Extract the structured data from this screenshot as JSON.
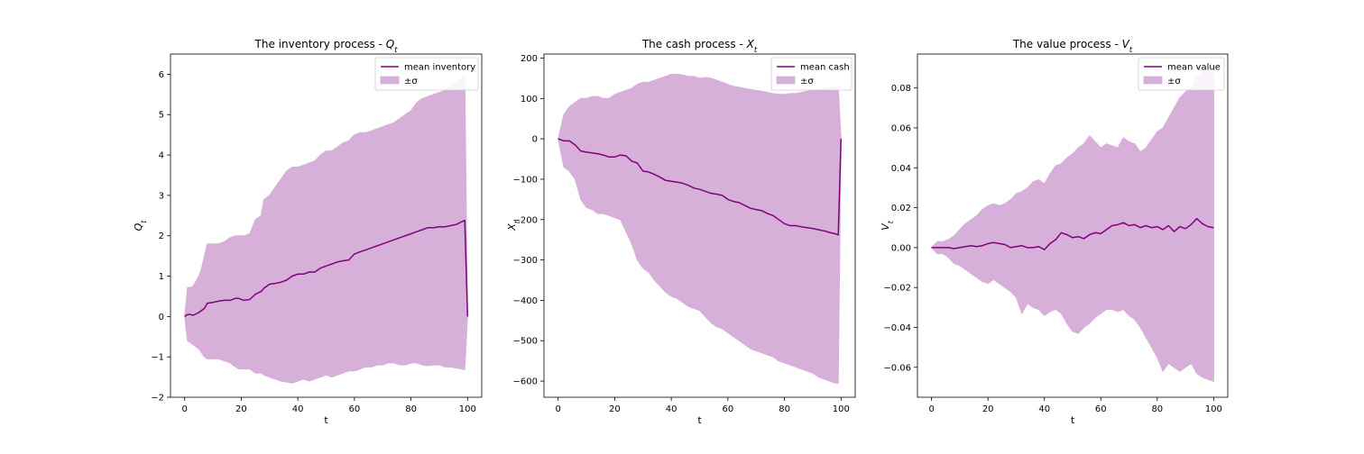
{
  "figure": {
    "background": "#ffffff",
    "line_color": "#800080",
    "band_color": "#d6b0d9"
  },
  "chart_data": [
    {
      "type": "line",
      "title": "The inventory process - ",
      "title_math": "Q",
      "title_sub": "t",
      "xlabel": "t",
      "ylabel": "Q",
      "ylabel_sub": "t",
      "xlim": [
        -5,
        105
      ],
      "ylim": [
        -2.0,
        6.5
      ],
      "xticks": [
        0,
        20,
        40,
        60,
        80,
        100
      ],
      "yticks": [
        -2,
        -1,
        0,
        1,
        2,
        3,
        4,
        5,
        6
      ],
      "legend": {
        "placement": "top-right",
        "entries": [
          "mean inventory",
          "±σ"
        ]
      },
      "series": [
        {
          "name": "mean inventory",
          "kind": "line",
          "x": [
            0,
            1,
            2,
            3,
            5,
            6,
            7,
            8,
            10,
            12,
            14,
            16,
            18,
            19,
            21,
            23,
            25,
            27,
            28,
            30,
            32,
            34,
            36,
            38,
            40,
            42,
            44,
            46,
            48,
            50,
            52,
            54,
            56,
            58,
            60,
            62,
            64,
            66,
            68,
            70,
            72,
            74,
            76,
            78,
            80,
            82,
            84,
            86,
            88,
            90,
            92,
            94,
            96,
            98,
            99,
            100
          ],
          "y": [
            0,
            0.05,
            0.05,
            0.03,
            0.1,
            0.15,
            0.2,
            0.33,
            0.35,
            0.38,
            0.4,
            0.4,
            0.45,
            0.45,
            0.4,
            0.42,
            0.55,
            0.62,
            0.7,
            0.8,
            0.82,
            0.85,
            0.9,
            1.0,
            1.05,
            1.05,
            1.1,
            1.1,
            1.2,
            1.25,
            1.3,
            1.35,
            1.38,
            1.4,
            1.55,
            1.6,
            1.65,
            1.7,
            1.75,
            1.8,
            1.85,
            1.9,
            1.95,
            2.0,
            2.05,
            2.1,
            2.15,
            2.2,
            2.2,
            2.22,
            2.22,
            2.25,
            2.28,
            2.35,
            2.38,
            0.0
          ]
        },
        {
          "name": "±σ",
          "kind": "band",
          "x": [
            0,
            1,
            2,
            3,
            5,
            6,
            7,
            8,
            10,
            12,
            14,
            16,
            18,
            19,
            21,
            23,
            25,
            27,
            28,
            30,
            32,
            34,
            36,
            38,
            40,
            42,
            44,
            46,
            48,
            50,
            52,
            54,
            56,
            58,
            60,
            62,
            64,
            66,
            68,
            70,
            72,
            74,
            76,
            78,
            80,
            82,
            84,
            86,
            88,
            90,
            92,
            94,
            96,
            98,
            99,
            100
          ],
          "upper": [
            0,
            0.72,
            0.72,
            0.75,
            1.0,
            1.2,
            1.5,
            1.8,
            1.8,
            1.8,
            1.85,
            1.95,
            2.0,
            2.0,
            2.0,
            2.05,
            2.4,
            2.5,
            2.9,
            3.0,
            3.2,
            3.4,
            3.6,
            3.7,
            3.7,
            3.75,
            3.8,
            3.85,
            4.0,
            4.1,
            4.1,
            4.2,
            4.3,
            4.35,
            4.5,
            4.55,
            4.55,
            4.6,
            4.65,
            4.7,
            4.75,
            4.8,
            4.9,
            5.0,
            5.1,
            5.3,
            5.4,
            5.45,
            5.5,
            5.55,
            5.6,
            5.7,
            5.8,
            5.9,
            6.0,
            0.0
          ],
          "lower": [
            0,
            -0.6,
            -0.65,
            -0.7,
            -0.8,
            -0.9,
            -1.0,
            -1.05,
            -1.05,
            -1.05,
            -1.1,
            -1.15,
            -1.25,
            -1.3,
            -1.3,
            -1.3,
            -1.4,
            -1.4,
            -1.45,
            -1.5,
            -1.55,
            -1.6,
            -1.62,
            -1.65,
            -1.6,
            -1.55,
            -1.6,
            -1.55,
            -1.5,
            -1.45,
            -1.5,
            -1.45,
            -1.4,
            -1.35,
            -1.35,
            -1.3,
            -1.25,
            -1.25,
            -1.2,
            -1.2,
            -1.15,
            -1.15,
            -1.2,
            -1.2,
            -1.15,
            -1.15,
            -1.2,
            -1.22,
            -1.2,
            -1.2,
            -1.25,
            -1.25,
            -1.28,
            -1.3,
            -1.32,
            0.0
          ]
        }
      ]
    },
    {
      "type": "line",
      "title": "The cash process - ",
      "title_math": "X",
      "title_sub": "t",
      "xlabel": "t",
      "ylabel": "X",
      "ylabel_sub": "t",
      "xlim": [
        -5,
        105
      ],
      "ylim": [
        -640,
        210
      ],
      "xticks": [
        0,
        20,
        40,
        60,
        80,
        100
      ],
      "yticks": [
        -600,
        -500,
        -400,
        -300,
        -200,
        -100,
        0,
        100,
        200
      ],
      "legend": {
        "placement": "top-right",
        "entries": [
          "mean cash",
          "±σ"
        ]
      },
      "series": [
        {
          "name": "mean cash",
          "kind": "line",
          "x": [
            0,
            2,
            4,
            6,
            8,
            10,
            12,
            14,
            16,
            18,
            20,
            22,
            24,
            26,
            28,
            30,
            32,
            34,
            36,
            38,
            40,
            42,
            44,
            46,
            48,
            50,
            52,
            54,
            56,
            58,
            60,
            62,
            64,
            66,
            68,
            70,
            72,
            74,
            76,
            78,
            80,
            82,
            84,
            86,
            88,
            90,
            92,
            94,
            96,
            98,
            99,
            100
          ],
          "y": [
            0,
            -5,
            -5,
            -15,
            -30,
            -33,
            -35,
            -37,
            -40,
            -45,
            -45,
            -40,
            -42,
            -55,
            -60,
            -80,
            -82,
            -88,
            -95,
            -103,
            -105,
            -107,
            -110,
            -115,
            -122,
            -125,
            -130,
            -135,
            -137,
            -140,
            -150,
            -155,
            -158,
            -165,
            -172,
            -175,
            -178,
            -185,
            -190,
            -200,
            -210,
            -215,
            -215,
            -218,
            -220,
            -222,
            -225,
            -228,
            -232,
            -235,
            -238,
            0
          ]
        },
        {
          "name": "±σ",
          "kind": "band",
          "x": [
            0,
            2,
            4,
            6,
            8,
            10,
            12,
            14,
            16,
            18,
            20,
            22,
            24,
            26,
            28,
            30,
            32,
            34,
            36,
            38,
            40,
            42,
            44,
            46,
            48,
            50,
            52,
            54,
            56,
            58,
            60,
            62,
            64,
            66,
            68,
            70,
            72,
            74,
            76,
            78,
            80,
            82,
            84,
            86,
            88,
            90,
            92,
            94,
            96,
            98,
            99,
            100
          ],
          "upper": [
            0,
            60,
            80,
            90,
            100,
            100,
            105,
            105,
            100,
            100,
            110,
            115,
            120,
            125,
            135,
            140,
            140,
            145,
            150,
            155,
            160,
            160,
            158,
            155,
            155,
            150,
            152,
            150,
            145,
            140,
            135,
            130,
            128,
            125,
            122,
            120,
            118,
            115,
            112,
            110,
            110,
            112,
            112,
            115,
            118,
            120,
            122,
            125,
            125,
            128,
            128,
            0
          ],
          "lower": [
            0,
            -70,
            -80,
            -100,
            -150,
            -170,
            -175,
            -185,
            -185,
            -190,
            -195,
            -200,
            -230,
            -260,
            -300,
            -320,
            -330,
            -350,
            -365,
            -380,
            -390,
            -395,
            -405,
            -415,
            -420,
            -425,
            -440,
            -455,
            -465,
            -470,
            -480,
            -490,
            -500,
            -510,
            -520,
            -525,
            -530,
            -535,
            -540,
            -550,
            -555,
            -560,
            -565,
            -570,
            -575,
            -580,
            -590,
            -595,
            -600,
            -605,
            -605,
            0
          ]
        }
      ]
    },
    {
      "type": "line",
      "title": "The value process - ",
      "title_math": "V",
      "title_sub": "t",
      "xlabel": "t",
      "ylabel": "V",
      "ylabel_sub": "t",
      "xlim": [
        -5,
        105
      ],
      "ylim": [
        -0.075,
        0.097
      ],
      "xticks": [
        0,
        20,
        40,
        60,
        80,
        100
      ],
      "yticks": [
        -0.06,
        -0.04,
        -0.02,
        0.0,
        0.02,
        0.04,
        0.06,
        0.08
      ],
      "ytick_labels": [
        "−0.06",
        "−0.04",
        "−0.02",
        "0.00",
        "0.02",
        "0.04",
        "0.06",
        "0.08"
      ],
      "legend": {
        "placement": "top-right",
        "entries": [
          "mean value",
          "±σ"
        ]
      },
      "series": [
        {
          "name": "mean value",
          "kind": "line",
          "x": [
            0,
            2,
            4,
            6,
            8,
            10,
            12,
            14,
            16,
            18,
            20,
            22,
            24,
            26,
            28,
            30,
            32,
            34,
            36,
            38,
            40,
            42,
            44,
            46,
            48,
            50,
            52,
            54,
            56,
            58,
            60,
            62,
            64,
            66,
            68,
            70,
            72,
            74,
            76,
            78,
            80,
            82,
            84,
            86,
            88,
            90,
            92,
            94,
            96,
            98,
            100
          ],
          "y": [
            0,
            0.0,
            0.0,
            0.0,
            -0.0005,
            0.0,
            0.0005,
            0.001,
            0.0005,
            0.001,
            0.002,
            0.0025,
            0.002,
            0.0015,
            0.0,
            0.0005,
            0.001,
            0.0,
            0.0,
            0.0005,
            -0.001,
            0.002,
            0.004,
            0.0075,
            0.0065,
            0.005,
            0.0055,
            0.0045,
            0.0065,
            0.0075,
            0.007,
            0.009,
            0.011,
            0.0115,
            0.0125,
            0.011,
            0.0115,
            0.01,
            0.011,
            0.01,
            0.0105,
            0.009,
            0.011,
            0.008,
            0.0105,
            0.0095,
            0.0115,
            0.0145,
            0.012,
            0.0105,
            0.01
          ]
        },
        {
          "name": "±σ",
          "kind": "band",
          "x": [
            0,
            2,
            4,
            6,
            8,
            10,
            12,
            14,
            16,
            18,
            20,
            22,
            24,
            26,
            28,
            30,
            32,
            34,
            36,
            38,
            40,
            42,
            44,
            46,
            48,
            50,
            52,
            54,
            56,
            58,
            60,
            62,
            64,
            66,
            68,
            70,
            72,
            74,
            76,
            78,
            80,
            82,
            84,
            86,
            88,
            90,
            92,
            94,
            96,
            98,
            100
          ],
          "upper": [
            0,
            0.003,
            0.003,
            0.004,
            0.006,
            0.009,
            0.012,
            0.014,
            0.016,
            0.019,
            0.021,
            0.022,
            0.021,
            0.022,
            0.024,
            0.027,
            0.028,
            0.03,
            0.033,
            0.034,
            0.032,
            0.037,
            0.041,
            0.042,
            0.045,
            0.047,
            0.05,
            0.052,
            0.056,
            0.053,
            0.05,
            0.052,
            0.051,
            0.05,
            0.055,
            0.053,
            0.052,
            0.048,
            0.05,
            0.054,
            0.058,
            0.06,
            0.065,
            0.07,
            0.075,
            0.078,
            0.08,
            0.085,
            0.088,
            0.09,
            0.087
          ],
          "lower": [
            0,
            -0.003,
            -0.003,
            -0.005,
            -0.008,
            -0.009,
            -0.011,
            -0.013,
            -0.015,
            -0.017,
            -0.018,
            -0.016,
            -0.018,
            -0.02,
            -0.022,
            -0.025,
            -0.033,
            -0.028,
            -0.03,
            -0.031,
            -0.034,
            -0.032,
            -0.031,
            -0.033,
            -0.038,
            -0.042,
            -0.043,
            -0.04,
            -0.038,
            -0.035,
            -0.033,
            -0.031,
            -0.031,
            -0.032,
            -0.031,
            -0.034,
            -0.036,
            -0.04,
            -0.045,
            -0.05,
            -0.055,
            -0.062,
            -0.058,
            -0.06,
            -0.062,
            -0.06,
            -0.058,
            -0.063,
            -0.065,
            -0.066,
            -0.067
          ]
        }
      ]
    }
  ]
}
